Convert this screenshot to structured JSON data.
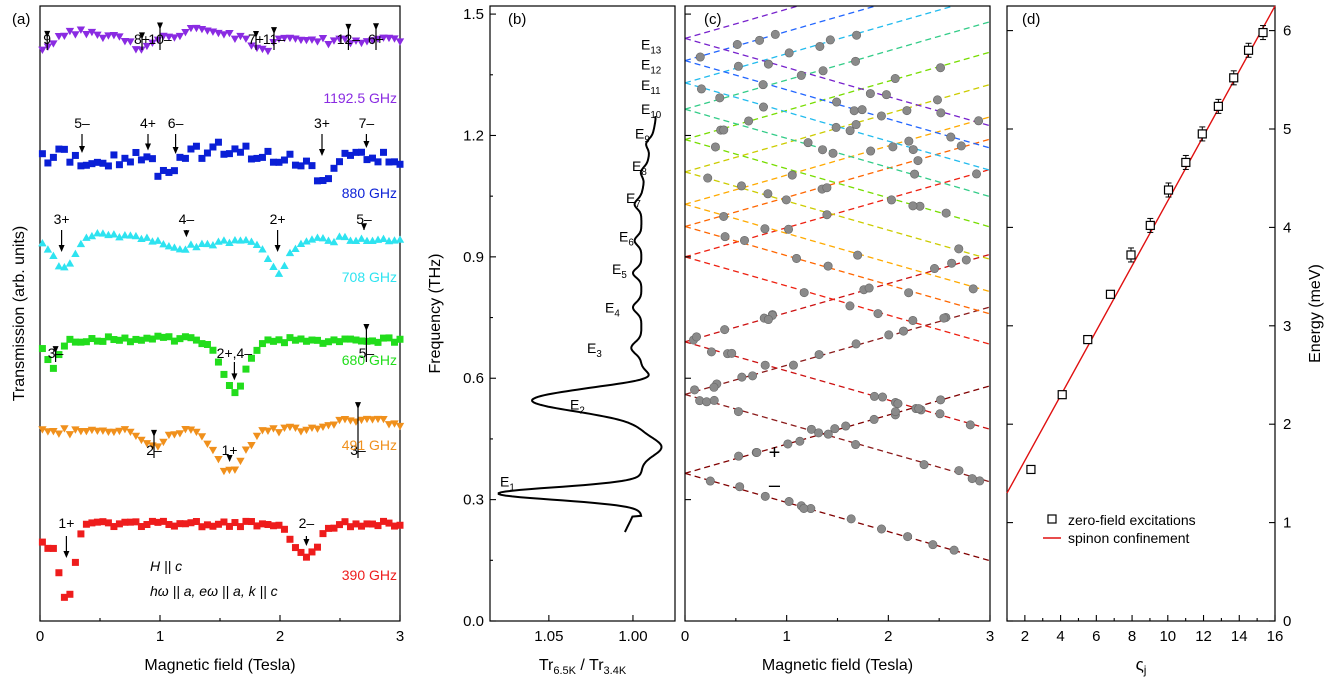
{
  "panels": {
    "a": "(a)",
    "b": "(b)",
    "c": "(c)",
    "d": "(d)"
  },
  "chart_data": [
    {
      "type": "scatter",
      "panel": "(a)",
      "xlabel": "Magnetic field (Tesla)",
      "ylabel": "Transmission (arb. units)",
      "xlim": [
        0,
        3
      ],
      "xticks": [
        "0",
        "1",
        "2",
        "3"
      ],
      "note_lines": [
        "H || c",
        "hω || a, eω || a, k || c"
      ],
      "traces": [
        {
          "freq": "1192.5 GHz",
          "color": "#8a2be2",
          "marker": "triangle-down",
          "labels": [
            {
              "t": "9",
              "x": 0.06
            },
            {
              "t": "8+",
              "x": 0.85
            },
            {
              "t": "10–",
              "x": 1.0
            },
            {
              "t": "7+",
              "x": 1.8
            },
            {
              "t": "11–",
              "x": 1.95
            },
            {
              "t": "12–",
              "x": 2.57
            },
            {
              "t": "6+",
              "x": 2.8
            }
          ]
        },
        {
          "freq": "880 GHz",
          "color": "#0a1fd6",
          "marker": "square",
          "labels": [
            {
              "t": "5–",
              "x": 0.35
            },
            {
              "t": "4+",
              "x": 0.9
            },
            {
              "t": "6–",
              "x": 1.13
            },
            {
              "t": "3+",
              "x": 2.35
            },
            {
              "t": "7–",
              "x": 2.72
            }
          ]
        },
        {
          "freq": "708 GHz",
          "color": "#2ee3f0",
          "marker": "triangle-up",
          "labels": [
            {
              "t": "3+",
              "x": 0.18
            },
            {
              "t": "4–",
              "x": 1.22
            },
            {
              "t": "2+",
              "x": 1.98
            },
            {
              "t": "5–",
              "x": 2.7
            }
          ]
        },
        {
          "freq": "680 GHz",
          "color": "#22dd1c",
          "marker": "square",
          "labels": [
            {
              "t": "3–",
              "x": 0.13
            },
            {
              "t": "2+,4–",
              "x": 1.62
            },
            {
              "t": "5–",
              "x": 2.72
            }
          ]
        },
        {
          "freq": "491 GHz",
          "color": "#f0901c",
          "marker": "triangle-down",
          "labels": [
            {
              "t": "2–",
              "x": 0.95
            },
            {
              "t": "1+",
              "x": 1.58
            },
            {
              "t": "3–",
              "x": 2.65
            }
          ]
        },
        {
          "freq": "390 GHz",
          "color": "#ee1c1c",
          "marker": "square",
          "labels": [
            {
              "t": "1+",
              "x": 0.22
            },
            {
              "t": "2–",
              "x": 2.22
            }
          ]
        }
      ]
    },
    {
      "type": "line",
      "panel": "(b)",
      "xlabel_main": "Tr",
      "xlabel_sub1": "6.5K",
      "xlabel_mid": " / Tr",
      "xlabel_sub2": "3.4K",
      "ylabel": "Frequency (THz)",
      "xlim": [
        1.085,
        0.975
      ],
      "ylim": [
        0.0,
        1.52
      ],
      "xticks": [
        "1.05",
        "1.00"
      ],
      "yticks": [
        "0.0",
        "0.3",
        "0.6",
        "0.9",
        "1.2",
        "1.5"
      ],
      "level_labels": [
        {
          "name": "E",
          "sub": "1",
          "f": 0.345
        },
        {
          "name": "E",
          "sub": "2",
          "f": 0.535
        },
        {
          "name": "E",
          "sub": "3",
          "f": 0.675
        },
        {
          "name": "E",
          "sub": "4",
          "f": 0.775
        },
        {
          "name": "E",
          "sub": "5",
          "f": 0.87
        },
        {
          "name": "E",
          "sub": "6",
          "f": 0.95
        },
        {
          "name": "E",
          "sub": "7",
          "f": 1.045
        },
        {
          "name": "E",
          "sub": "8",
          "f": 1.125
        },
        {
          "name": "E",
          "sub": "9",
          "f": 1.205
        },
        {
          "name": "E",
          "sub": "10",
          "f": 1.265
        },
        {
          "name": "E",
          "sub": "11",
          "f": 1.325
        },
        {
          "name": "E",
          "sub": "12",
          "f": 1.375
        },
        {
          "name": "E",
          "sub": "13",
          "f": 1.425
        }
      ],
      "levels": [
        0.315,
        0.545,
        0.675,
        0.775,
        0.86,
        0.94,
        1.03,
        1.11,
        1.18,
        1.265,
        1.325,
        1.375,
        1.43
      ],
      "curve_start_f": 0.22,
      "curve_end_f": 1.25
    },
    {
      "type": "scatter",
      "panel": "(c)",
      "xlabel": "Magnetic field (Tesla)",
      "xlim": [
        0,
        3
      ],
      "ylim": [
        0.0,
        1.52
      ],
      "xticks": [
        "0",
        "1",
        "2",
        "3"
      ],
      "levels": [
        0.365,
        0.56,
        0.69,
        0.9,
        0.975,
        1.03,
        1.11,
        1.19,
        1.265,
        1.33,
        1.385,
        1.44
      ],
      "branch_slope_thz_per_tesla": 0.072,
      "level_colors": [
        "#800000",
        "#8b1a1a",
        "#cc1010",
        "#ee2010",
        "#ff6600",
        "#ffaa00",
        "#cccc00",
        "#77dd00",
        "#33cc88",
        "#22bbee",
        "#2266ff",
        "#7722cc"
      ],
      "markers": [
        {
          "t": "+",
          "x": 0.88,
          "f": 0.415
        },
        {
          "t": "–",
          "x": 0.88,
          "f": 0.335
        }
      ],
      "point_color": "#8a8a8a"
    },
    {
      "type": "scatter",
      "panel": "(d)",
      "xlabel": "ς",
      "xlabel_sub": "j",
      "ylabel": "Energy (meV)",
      "xlim": [
        1,
        16
      ],
      "ylim": [
        0,
        6.25
      ],
      "xticks": [
        "2",
        "4",
        "6",
        "8",
        "10",
        "12",
        "14",
        "16"
      ],
      "yticks": [
        "0",
        "1",
        "2",
        "3",
        "4",
        "5",
        "6"
      ],
      "series": [
        {
          "name": "zero-field excitations",
          "x": [
            2.34,
            4.09,
            5.52,
            6.79,
            7.94,
            9.02,
            10.04,
            11.01,
            11.93,
            12.83,
            13.69,
            14.52,
            15.33
          ],
          "y": [
            1.54,
            2.3,
            2.86,
            3.32,
            3.72,
            4.02,
            4.38,
            4.66,
            4.95,
            5.23,
            5.52,
            5.8,
            5.98
          ]
        },
        {
          "name": "spinon confinement",
          "line_from": [
            1.0,
            1.3
          ],
          "line_to": [
            16.0,
            6.25
          ]
        }
      ],
      "legend_position": "bottom-right",
      "line_color": "#e01010"
    }
  ]
}
